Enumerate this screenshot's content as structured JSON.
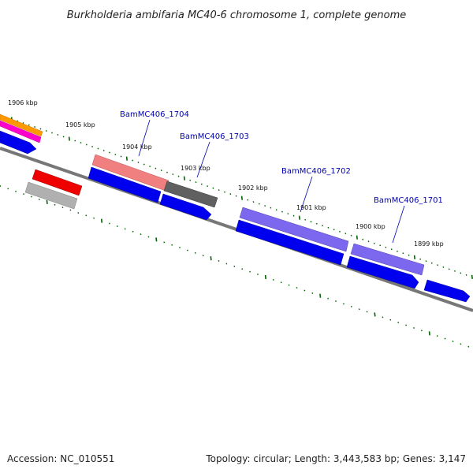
{
  "title": "Burkholderia ambifaria MC40-6 chromosome 1, complete genome",
  "footer": {
    "accession": "Accession: NC_010551",
    "summary": "Topology: circular; Length: 3,443,583 bp; Genes: 3,147"
  },
  "kbp_labels": [
    "1906 kbp",
    "1905 kbp",
    "1904 kbp",
    "1903 kbp",
    "1902 kbp",
    "1901 kbp",
    "1900 kbp",
    "1899 kbp"
  ],
  "gene_labels": [
    "BamMC406_1704",
    "BamMC406_1703",
    "BamMC406_1702",
    "BamMC406_1701"
  ],
  "colors": {
    "cds": "#0000ee",
    "gene_1704": "#f08080",
    "gene_1703": "#606060",
    "gene_1702": "#7b68ee",
    "gene_1701": "#7b68ee",
    "red_feature": "#ee0000",
    "gray_feature": "#b0b0b0",
    "orange_feature": "#ff9900",
    "magenta_feature": "#ff00cc",
    "backbone": "#777777",
    "ticks": "#006600",
    "label_text": "#0000aa"
  }
}
